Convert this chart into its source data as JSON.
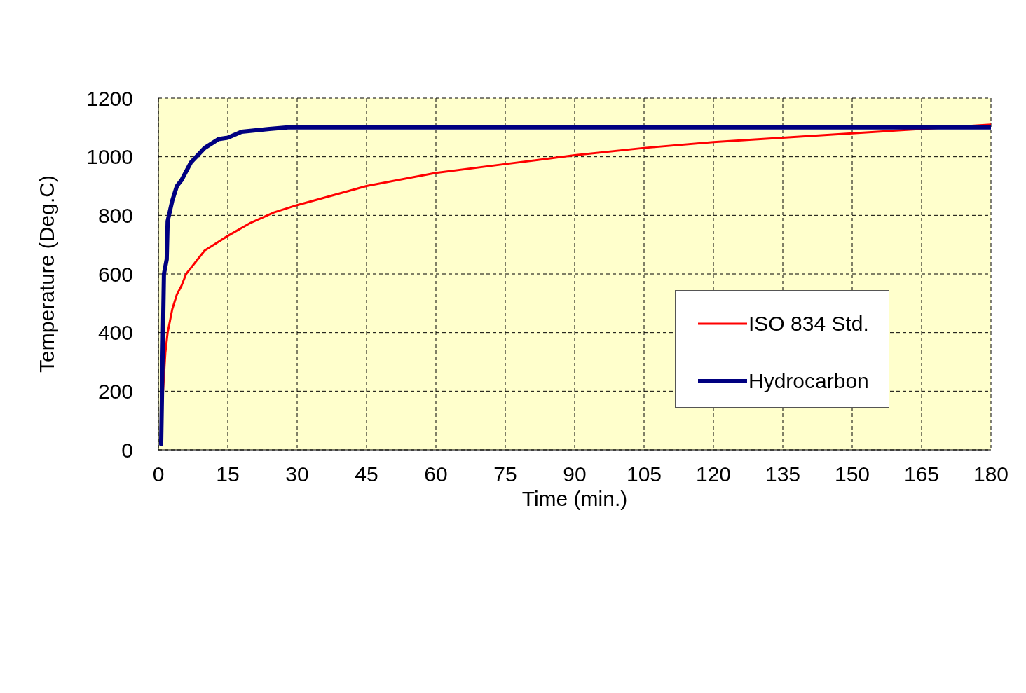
{
  "chart_data": {
    "type": "line",
    "xlabel": "Time (min.)",
    "ylabel": "Temperature (Deg.C)",
    "xlim": [
      0,
      180
    ],
    "xticks": [
      0,
      15,
      30,
      45,
      60,
      75,
      90,
      105,
      120,
      135,
      150,
      165,
      180
    ],
    "ylim": [
      0,
      1200
    ],
    "yticks": [
      0,
      200,
      400,
      600,
      800,
      1000,
      1200
    ],
    "grid": true,
    "legend": "right",
    "marker": "none",
    "line_style": "solid",
    "series": [
      {
        "name": "ISO 834 Std.",
        "color": "#ff0000",
        "x": [
          1,
          1.5,
          2,
          3,
          4,
          5,
          6,
          7,
          8,
          10,
          12,
          15,
          20,
          25,
          30,
          45,
          60,
          75,
          90,
          105,
          120,
          135,
          150,
          165,
          180
        ],
        "values": [
          200,
          330,
          400,
          480,
          530,
          560,
          600,
          620,
          640,
          680,
          700,
          730,
          775,
          810,
          835,
          900,
          945,
          975,
          1005,
          1030,
          1050,
          1065,
          1080,
          1095,
          1110
        ]
      },
      {
        "name": "Hydrocarbon",
        "color": "#000080",
        "x": [
          0.6,
          1.2,
          1.8,
          2,
          3,
          4,
          5,
          7,
          10,
          13,
          15,
          18,
          21,
          24,
          28,
          180
        ],
        "values": [
          20,
          600,
          650,
          780,
          850,
          900,
          920,
          980,
          1030,
          1060,
          1065,
          1085,
          1090,
          1095,
          1100,
          1100
        ]
      }
    ]
  }
}
